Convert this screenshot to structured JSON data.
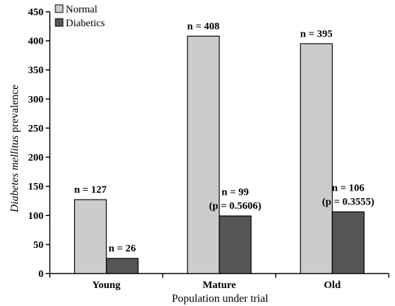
{
  "chart_data": {
    "type": "bar",
    "categories": [
      "Young",
      "Mature",
      "Old"
    ],
    "series": [
      {
        "name": "Normal",
        "color": "#cccccc",
        "values": [
          127,
          408,
          395
        ],
        "labels": [
          [
            "n = 127"
          ],
          [
            "n = 408"
          ],
          [
            "n = 395"
          ]
        ]
      },
      {
        "name": "Diabetics",
        "color": "#555555",
        "values": [
          26,
          99,
          106
        ],
        "labels": [
          [
            "n = 26"
          ],
          [
            "n = 99",
            "(p = 0.5606)"
          ],
          [
            "n = 106",
            "(p = 0.3555)"
          ]
        ]
      }
    ],
    "title": "",
    "xlabel": "Population under trial",
    "ylabel_italic": "Diabetes mellitus",
    "ylabel_rest": " prevalence",
    "ylim": [
      0,
      450
    ],
    "yticks": [
      0,
      50,
      100,
      150,
      200,
      250,
      300,
      350,
      400,
      450
    ],
    "grid": false,
    "legend_position": "top-left"
  }
}
